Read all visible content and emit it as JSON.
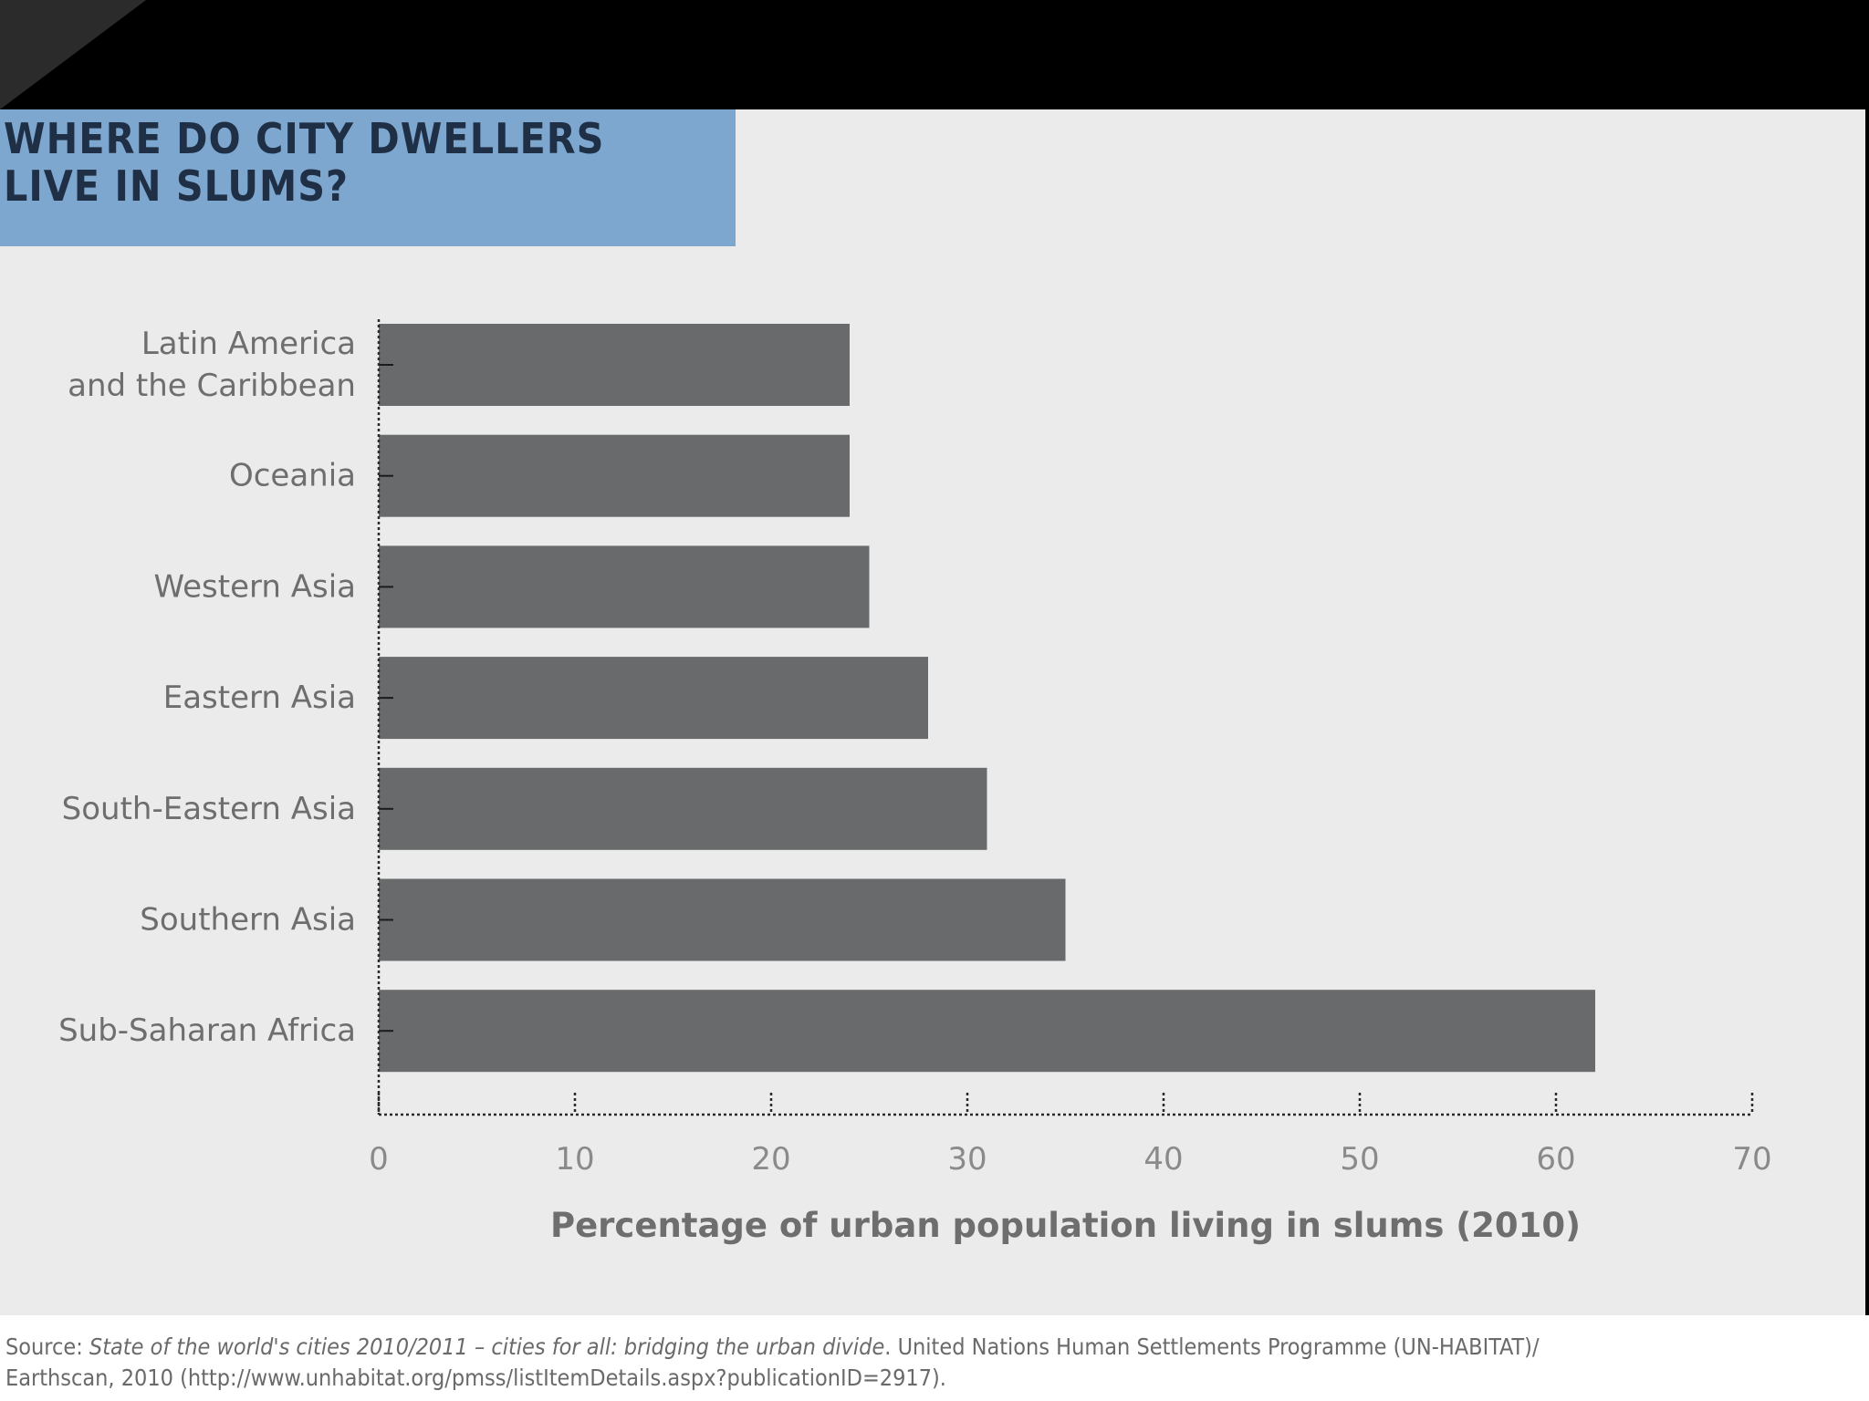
{
  "title": {
    "line1": "WHERE DO CITY DWELLERS",
    "line2": "LIVE IN SLUMS?"
  },
  "colors": {
    "title_box": "#7ea7cf",
    "bars": "#686a6b",
    "panel": "#ebebeb"
  },
  "chart_data": {
    "type": "bar",
    "orientation": "horizontal",
    "categories": [
      [
        "Latin America",
        "and the Caribbean"
      ],
      [
        "Oceania"
      ],
      [
        "Western Asia"
      ],
      [
        "Eastern Asia"
      ],
      [
        "South-Eastern Asia"
      ],
      [
        "Southern Asia"
      ],
      [
        "Sub-Saharan Africa"
      ]
    ],
    "values": [
      24,
      24,
      25,
      28,
      31,
      35,
      62
    ],
    "xlabel": "Percentage of urban population living in slums (2010)",
    "ylabel": "",
    "xlim": [
      0,
      70
    ],
    "xticks": [
      0,
      10,
      20,
      30,
      40,
      50,
      60,
      70
    ],
    "grid": false
  },
  "source": {
    "prefix": "Source: ",
    "work": "State of the world's cities 2010/2011 – cities for all: bridging the urban divide",
    "suffix": ". United Nations Human Settlements Programme (UN-HABITAT)/",
    "line2": "Earthscan, 2010 (http://www.unhabitat.org/pmss/listItemDetails.aspx?publicationID=2917)."
  }
}
